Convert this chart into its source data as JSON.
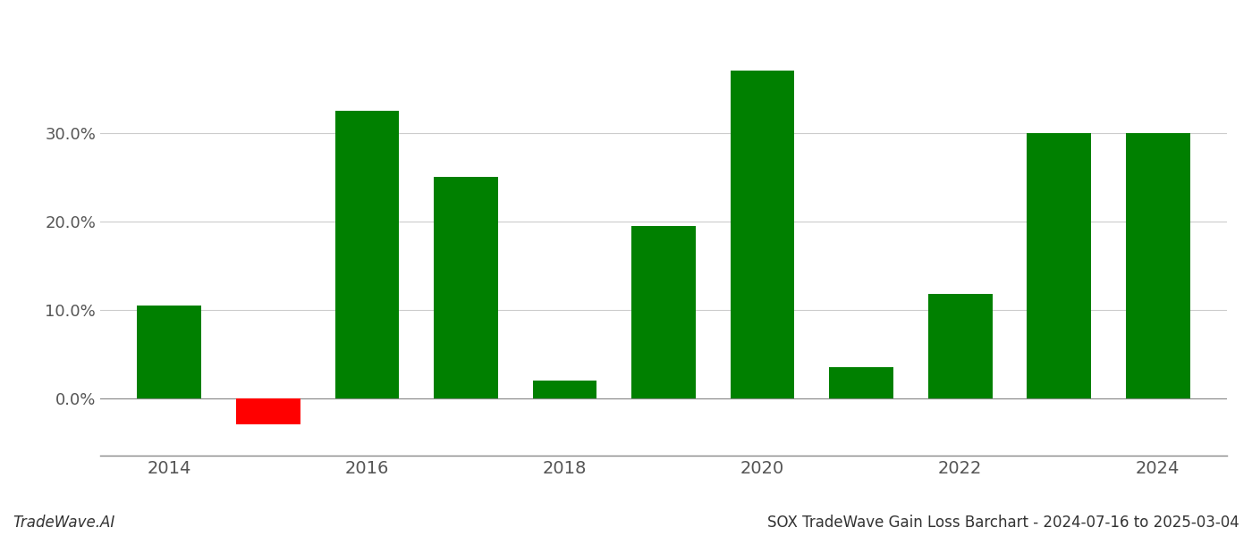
{
  "years": [
    2014,
    2015,
    2016,
    2017,
    2018,
    2019,
    2020,
    2021,
    2022,
    2023,
    2024
  ],
  "values": [
    0.105,
    -0.03,
    0.325,
    0.25,
    0.02,
    0.195,
    0.37,
    0.035,
    0.118,
    0.3,
    0.3
  ],
  "bar_colors": [
    "#008000",
    "#ff0000",
    "#008000",
    "#008000",
    "#008000",
    "#008000",
    "#008000",
    "#008000",
    "#008000",
    "#008000",
    "#008000"
  ],
  "xlabel": "",
  "ylabel": "",
  "title": "",
  "footer_left": "TradeWave.AI",
  "footer_right": "SOX TradeWave Gain Loss Barchart - 2024-07-16 to 2025-03-04",
  "ylim_min": -0.065,
  "ylim_max": 0.42,
  "yticks": [
    0.0,
    0.1,
    0.2,
    0.3
  ],
  "xticks": [
    2014,
    2016,
    2018,
    2020,
    2022,
    2024
  ],
  "xlim_min": 2013.3,
  "xlim_max": 2024.7,
  "background_color": "#ffffff",
  "grid_color": "#cccccc",
  "grid_linewidth": 0.8,
  "bar_width": 0.65,
  "xtick_fontsize": 14,
  "ytick_fontsize": 13,
  "footer_fontsize": 12,
  "spine_color": "#888888",
  "tick_color": "#555555"
}
